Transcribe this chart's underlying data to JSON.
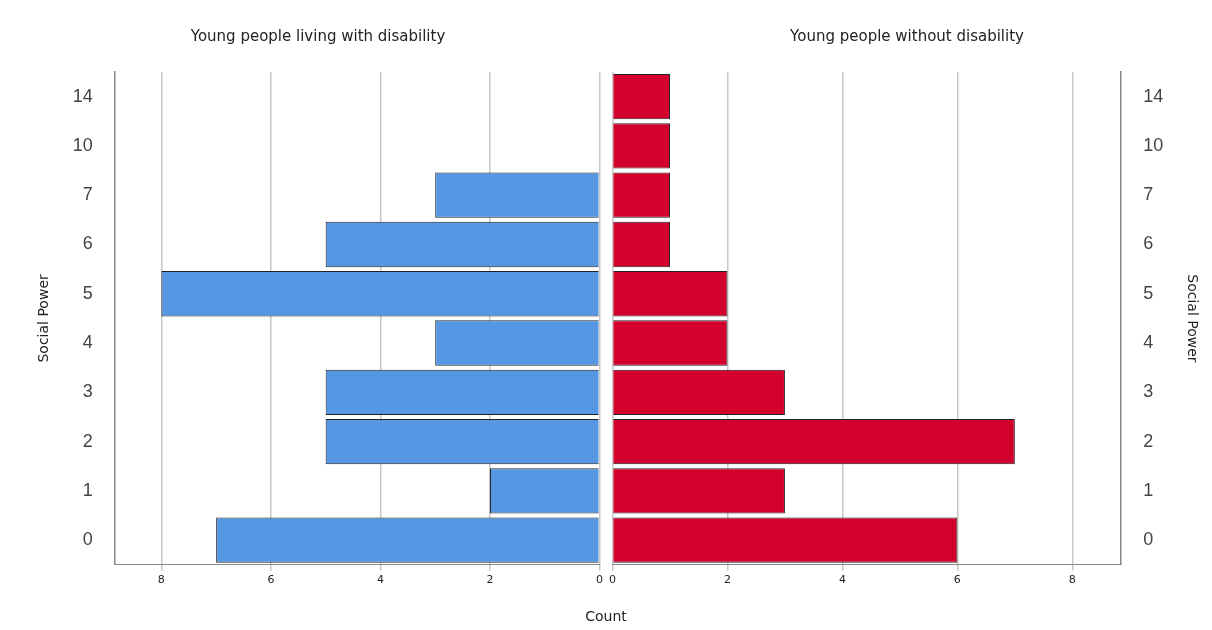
{
  "chart_data": [
    {
      "type": "bar",
      "orientation": "horizontal",
      "title": "Young people living with disability",
      "ylabel": "Social Power",
      "xlabel": "Count",
      "categories": [
        "14",
        "10",
        "7",
        "6",
        "5",
        "4",
        "3",
        "2",
        "1",
        "0"
      ],
      "series": [
        {
          "color": "#5597e2",
          "values": [
            0,
            0,
            3,
            5,
            8,
            3,
            5,
            5,
            2,
            7
          ]
        }
      ],
      "xlim": [
        8.85,
        0
      ],
      "xticks": [
        8,
        6,
        4,
        2,
        0
      ],
      "grid": "x"
    },
    {
      "type": "bar",
      "orientation": "horizontal",
      "title": "Young people without disability",
      "y2label": "Social Power",
      "categories": [
        "14",
        "10",
        "7",
        "6",
        "5",
        "4",
        "3",
        "2",
        "1",
        "0"
      ],
      "series": [
        {
          "color": "#d3002d",
          "values": [
            1,
            1,
            1,
            1,
            2,
            2,
            3,
            7,
            3,
            6
          ]
        }
      ],
      "xlim": [
        0,
        8.85
      ],
      "xticks": [
        0,
        2,
        4,
        6,
        8
      ],
      "grid": "x"
    }
  ]
}
